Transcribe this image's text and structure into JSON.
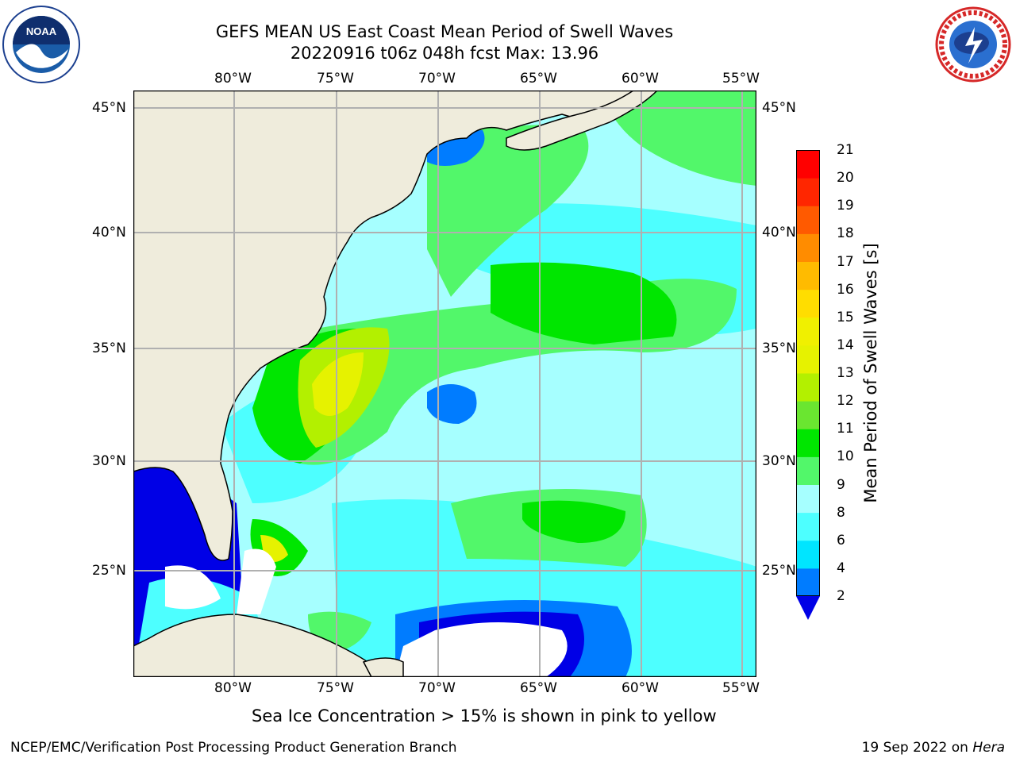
{
  "title": {
    "line1": "GEFS MEAN US East Coast Mean Period of Swell Waves",
    "line2": "20220916 t06z 048h fcst   Max: 13.96"
  },
  "logos": {
    "left": {
      "icon": "noaa-logo",
      "text": "NOAA"
    },
    "right": {
      "icon": "nws-logo"
    }
  },
  "map": {
    "lon_labels": [
      "80°W",
      "75°W",
      "70°W",
      "65°W",
      "60°W",
      "55°W"
    ],
    "lat_labels": [
      "45°N",
      "40°N",
      "35°N",
      "30°N",
      "25°N"
    ],
    "gridlines": true,
    "colors": {
      "land": "#efecdc",
      "coast": "#000000",
      "grid": "#b0b0b0",
      "no_data": "#ffffff"
    }
  },
  "colorbar": {
    "label": "Mean Period of Swell Waves [s]",
    "ticks": [
      "2",
      "4",
      "6",
      "8",
      "9",
      "10",
      "11",
      "12",
      "13",
      "14",
      "15",
      "16",
      "17",
      "18",
      "19",
      "20",
      "21"
    ],
    "colors": [
      "#0000e6",
      "#007cff",
      "#00e5ff",
      "#4dffff",
      "#a6ffff",
      "#52f76a",
      "#00e600",
      "#6ae630",
      "#b3f000",
      "#e6f200",
      "#f0f000",
      "#ffdd00",
      "#ffbb00",
      "#ff8c00",
      "#ff5a00",
      "#ff2600",
      "#ff0000"
    ],
    "under_color": "#0000e6"
  },
  "footnote": "Sea Ice Concentration > 15% is shown in pink to yellow",
  "credit": "NCEP/EMC/Verification Post Processing Product Generation Branch",
  "date": {
    "text": "19 Sep 2022 on ",
    "machine": "Hera"
  }
}
